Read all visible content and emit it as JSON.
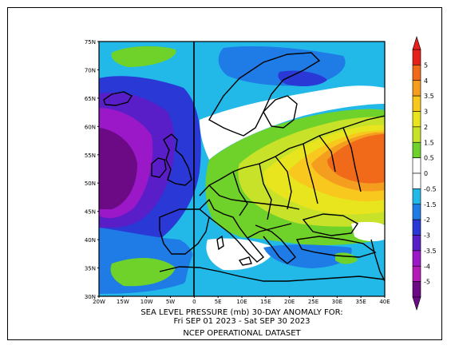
{
  "map": {
    "lat_labels": [
      "75N",
      "70N",
      "65N",
      "60N",
      "55N",
      "50N",
      "45N",
      "40N",
      "35N",
      "30N"
    ],
    "lon_labels": [
      "20W",
      "15W",
      "10W",
      "5W",
      "0",
      "5E",
      "10E",
      "15E",
      "20E",
      "25E",
      "30E",
      "35E",
      "40E"
    ],
    "extent": {
      "lon": [
        -20,
        40
      ],
      "lat": [
        30,
        75
      ]
    }
  },
  "caption": {
    "line1": "SEA LEVEL PRESSURE (mb)   30-DAY ANOMALY FOR:",
    "line2": "Fri SEP 01 2023 - Sat SEP 30 2023",
    "source": "NCEP OPERATIONAL DATASET"
  },
  "colorbar": {
    "levels": [
      "5",
      "4",
      "3.5",
      "3",
      "2",
      "1.5",
      "0.5",
      "0",
      "-0.5",
      "-1.5",
      "-2",
      "-3",
      "-3.5",
      "-4",
      "-5"
    ],
    "colors": [
      "#e8201c",
      "#f06a1a",
      "#f59d1e",
      "#f8c81e",
      "#e8e51e",
      "#c8e22a",
      "#6fd22a",
      "#ffffff",
      "#ffffff",
      "#22b9e8",
      "#1f7be6",
      "#2a38d6",
      "#5a1ec8",
      "#9a18c8",
      "#b41ab8",
      "#6c0a86"
    ]
  }
}
